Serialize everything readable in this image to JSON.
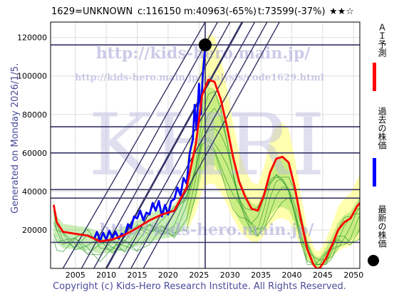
{
  "header": {
    "code": "1629=UNKNOWN",
    "close": "c:116150",
    "min": "m:40963(-65%)",
    "target": "t:73599(-37%)",
    "rating": "★★☆"
  },
  "side_label": "Generated on Monday 2026/1/5.",
  "copyright": "Copyright (c) Kids-Hero Research Institute. All Rights Reserved.",
  "watermark": {
    "url1": "http://kids-hero.main.jp/",
    "url2": "http://kids-hero.main.jp/analysis/code1629.html",
    "logo": "KHRI",
    "url3": "http://kids-hero.main.jp/"
  },
  "legend": {
    "ai_forecast": "ＡＩ予測",
    "past_price": "過去の株価",
    "latest_price": "最新の株価"
  },
  "colors": {
    "ai_forecast": "#ff0000",
    "past_price": "#0000ff",
    "latest_price": "#000000",
    "green_band": "#66cc33",
    "yellow_band": "#ffff99",
    "guide_lines": "#333366"
  },
  "chart_data": {
    "type": "line",
    "xlim": [
      2001,
      2051
    ],
    "ylim": [
      0,
      128000
    ],
    "x_ticks": [
      "2005",
      "2010",
      "2015",
      "2020",
      "2025",
      "2030",
      "2035",
      "2040",
      "2045",
      "2050"
    ],
    "y_ticks": [
      "20000",
      "40000",
      "60000",
      "80000",
      "100000",
      "120000"
    ],
    "horizontal_levels": [
      116150,
      73599,
      60000,
      40963,
      36500,
      13500
    ],
    "current_marker": {
      "x": 2026.0,
      "y": 116150
    },
    "series": [
      {
        "name": "過去の株価",
        "x": [
          2008.0,
          2008.5,
          2009.0,
          2009.5,
          2010.0,
          2010.5,
          2011.0,
          2011.5,
          2012.0,
          2012.5,
          2013.0,
          2013.5,
          2014.0,
          2014.5,
          2015.0,
          2015.5,
          2016.0,
          2016.5,
          2017.0,
          2017.5,
          2018.0,
          2018.5,
          2019.0,
          2019.5,
          2020.0,
          2020.5,
          2021.0,
          2021.5,
          2022.0,
          2022.5,
          2023.0,
          2023.5,
          2024.0,
          2024.3,
          2024.6,
          2025.0,
          2025.3,
          2025.6,
          2026.0
        ],
        "values": [
          15000,
          19000,
          14500,
          18500,
          15000,
          19500,
          16000,
          19000,
          15500,
          18000,
          17000,
          23000,
          21000,
          27000,
          26000,
          30000,
          25000,
          29000,
          28000,
          34000,
          30000,
          35000,
          27000,
          33000,
          28000,
          35000,
          36000,
          42000,
          38000,
          47000,
          44000,
          60000,
          67000,
          85000,
          72000,
          96000,
          80000,
          100000,
          116150
        ]
      },
      {
        "name": "ＡＩ予測",
        "x": [
          2001.5,
          2002.0,
          2003.0,
          2005.0,
          2007.0,
          2009.0,
          2011.0,
          2013.0,
          2015.0,
          2017.0,
          2019.0,
          2021.0,
          2023.0,
          2024.5,
          2025.5,
          2026.5,
          2027.5,
          2028.5,
          2029.5,
          2030.5,
          2031.5,
          2032.5,
          2033.5,
          2034.5,
          2035.5,
          2036.5,
          2037.5,
          2038.5,
          2039.5,
          2040.5,
          2041.5,
          2042.5,
          2043.5,
          2044.0,
          2044.5,
          2045.5,
          2046.5,
          2047.5,
          2048.5,
          2049.5,
          2050.5,
          2051.0
        ],
        "values": [
          33000,
          24000,
          19000,
          18000,
          17000,
          14000,
          15000,
          17500,
          21000,
          25000,
          28000,
          30000,
          42000,
          65000,
          90000,
          98000,
          97000,
          88000,
          74000,
          58000,
          45000,
          37000,
          31000,
          30000,
          38000,
          50000,
          57000,
          58000,
          55000,
          42000,
          25000,
          10000,
          2000,
          0,
          0,
          5000,
          12000,
          20000,
          24000,
          26000,
          32000,
          34000
        ]
      }
    ]
  }
}
